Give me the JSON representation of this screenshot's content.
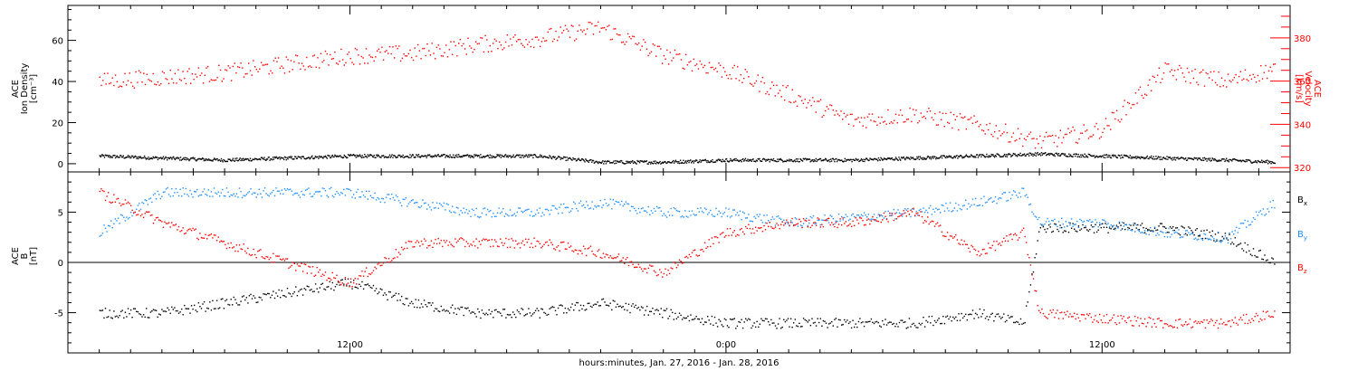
{
  "chart_data": [
    {
      "type": "scatter",
      "panel": "top",
      "ylabel_left": [
        "ACE",
        "Ion Density",
        "[cm⁻³]"
      ],
      "ylabel_right": [
        "ACE",
        "Velocity",
        "[km/s]"
      ],
      "y_left_ticks": [
        "0",
        "20",
        "40",
        "60"
      ],
      "y_left_tick_values": [
        0,
        20,
        40,
        60
      ],
      "y_left_lim": [
        -4,
        77
      ],
      "y_right_ticks": [
        "320",
        "340",
        "360",
        "380"
      ],
      "y_right_tick_values": [
        320,
        340,
        360,
        380
      ],
      "y_right_lim": [
        318,
        395
      ],
      "x_hours": [
        4,
        6,
        8,
        10,
        12,
        14,
        16,
        18,
        20,
        22,
        24,
        26,
        28,
        30,
        32,
        34,
        36,
        38,
        40,
        41.5
      ],
      "series": [
        {
          "axis": "left",
          "color": "#000000",
          "values": [
            4,
            3,
            2,
            3,
            4,
            4,
            4,
            4,
            1,
            1,
            2,
            2,
            2,
            3,
            4,
            5,
            4,
            3,
            2,
            1
          ]
        },
        {
          "axis": "right",
          "color": "#ff0000",
          "values": [
            360,
            362,
            364,
            368,
            372,
            373,
            377,
            380,
            385,
            372,
            365,
            354,
            342,
            345,
            340,
            332,
            338,
            365,
            360,
            366
          ]
        }
      ]
    },
    {
      "type": "scatter",
      "panel": "bottom",
      "ylabel_left": [
        "ACE",
        "B",
        "[nT]"
      ],
      "y_ticks": [
        "-5",
        "0",
        "5"
      ],
      "y_tick_values": [
        -5,
        0,
        5
      ],
      "ylim": [
        -9,
        9
      ],
      "zero_line": true,
      "series": [
        {
          "name": "Bx",
          "color": "#000000",
          "x_hours": [
            4,
            6,
            8,
            10,
            12,
            14,
            16,
            18,
            20,
            22,
            24,
            26,
            28,
            30,
            32,
            33.5,
            34,
            36,
            38,
            40,
            41.5
          ],
          "values": [
            -5,
            -5,
            -4,
            -3,
            -2,
            -4,
            -5,
            -5,
            -4,
            -5,
            -6,
            -6,
            -6,
            -6,
            -5,
            -6,
            3.5,
            3.5,
            3.5,
            2.5,
            0
          ]
        },
        {
          "name": "By",
          "color": "#1e90ff",
          "x_hours": [
            4,
            6,
            8,
            10,
            12,
            14,
            16,
            18,
            20,
            22,
            24,
            26,
            28,
            30,
            32,
            33.5,
            34,
            36,
            38,
            40,
            41.5
          ],
          "values": [
            3,
            7,
            7,
            7,
            7,
            6,
            5,
            5,
            6,
            5,
            5,
            4,
            4.5,
            5,
            6,
            7,
            4,
            4,
            3,
            2.5,
            6
          ]
        },
        {
          "name": "Bz",
          "color": "#ff0000",
          "x_hours": [
            4,
            6,
            8,
            10,
            12,
            14,
            16,
            18,
            20,
            22,
            24,
            26,
            28,
            30,
            32,
            33.5,
            34,
            36,
            38,
            40,
            41.5
          ],
          "values": [
            7,
            4,
            2,
            0,
            -2,
            2,
            2,
            2,
            1,
            -1,
            3,
            4,
            4,
            5,
            1,
            3,
            -5,
            -5.5,
            -6,
            -6,
            -5
          ]
        }
      ],
      "legend": [
        "B",
        "B",
        "B"
      ],
      "legend_subscripts": [
        "x",
        "y",
        "z"
      ],
      "legend_colors": [
        "#000000",
        "#1e90ff",
        "#ff0000"
      ]
    }
  ],
  "x_axis": {
    "tick_labels": [
      "12:00",
      "0:00",
      "12:00"
    ],
    "tick_hours": [
      12,
      24,
      36
    ],
    "xlim_hours": [
      3,
      42
    ],
    "xlabel": "hours:minutes, Jan. 27, 2016 - Jan. 28, 2016"
  }
}
